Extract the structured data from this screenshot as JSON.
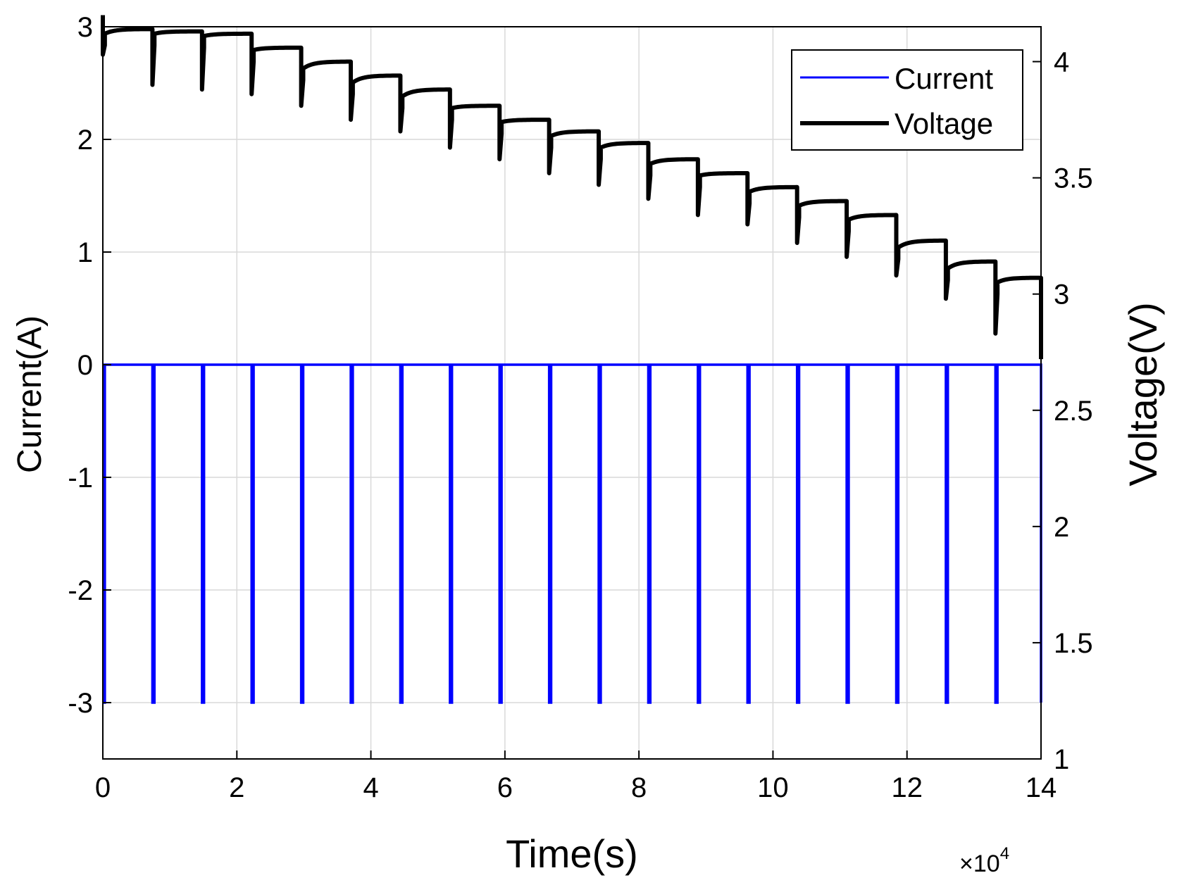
{
  "chart_data": {
    "type": "line",
    "xlabel": "Time(s)",
    "x_exponent_label": "×10",
    "x_exponent_power": "4",
    "x_multiplier": 10000,
    "x_unit_range": [
      0,
      14
    ],
    "x_ticks": [
      0,
      2,
      4,
      6,
      8,
      10,
      12,
      14
    ],
    "y_left": {
      "label": "Current(A)",
      "range": [
        -3.5,
        3
      ],
      "ticks": [
        3,
        2,
        1,
        0,
        -1,
        -2,
        -3
      ]
    },
    "y_right": {
      "label": "Voltage(V)",
      "range": [
        1,
        4.15
      ],
      "ticks": [
        4,
        3.5,
        3,
        2.5,
        2,
        1.5,
        1
      ]
    },
    "grid": true,
    "legend": {
      "placement": "top-right",
      "entries": [
        "Current",
        "Voltage"
      ]
    },
    "colors": {
      "current": "#0000ff",
      "voltage": "#000000",
      "grid": "#d9d9d9"
    },
    "pulse_width_s": 300,
    "series": [
      {
        "name": "Current",
        "axis": "left",
        "rest_current_A": 0,
        "discharge_current_A": -3,
        "pulse_start_times_s": [
          0,
          7400,
          14800,
          22200,
          29600,
          37000,
          44400,
          51800,
          59200,
          66600,
          74000,
          81400,
          88800,
          96200,
          103600,
          111000,
          118400,
          125800,
          133200,
          140000
        ]
      },
      {
        "name": "Voltage",
        "axis": "right",
        "segments": [
          {
            "t0": 300,
            "t1": 7400,
            "v_start": 4.12,
            "v_end": 4.14,
            "v_min": 3.9
          },
          {
            "t0": 7700,
            "t1": 14800,
            "v_start": 4.12,
            "v_end": 4.13,
            "v_min": 3.88
          },
          {
            "t0": 15100,
            "t1": 22200,
            "v_start": 4.11,
            "v_end": 4.12,
            "v_min": 3.86
          },
          {
            "t0": 22500,
            "t1": 29600,
            "v_start": 4.05,
            "v_end": 4.06,
            "v_min": 3.81
          },
          {
            "t0": 29900,
            "t1": 37000,
            "v_start": 3.97,
            "v_end": 4.0,
            "v_min": 3.75
          },
          {
            "t0": 37300,
            "t1": 44400,
            "v_start": 3.91,
            "v_end": 3.94,
            "v_min": 3.7
          },
          {
            "t0": 44700,
            "t1": 51800,
            "v_start": 3.85,
            "v_end": 3.88,
            "v_min": 3.63
          },
          {
            "t0": 52100,
            "t1": 59200,
            "v_start": 3.8,
            "v_end": 3.81,
            "v_min": 3.58
          },
          {
            "t0": 59500,
            "t1": 66600,
            "v_start": 3.74,
            "v_end": 3.75,
            "v_min": 3.52
          },
          {
            "t0": 66900,
            "t1": 74000,
            "v_start": 3.68,
            "v_end": 3.7,
            "v_min": 3.47
          },
          {
            "t0": 74300,
            "t1": 81400,
            "v_start": 3.63,
            "v_end": 3.65,
            "v_min": 3.41
          },
          {
            "t0": 81700,
            "t1": 88800,
            "v_start": 3.56,
            "v_end": 3.58,
            "v_min": 3.34
          },
          {
            "t0": 89100,
            "t1": 96200,
            "v_start": 3.51,
            "v_end": 3.52,
            "v_min": 3.3
          },
          {
            "t0": 96500,
            "t1": 103600,
            "v_start": 3.44,
            "v_end": 3.46,
            "v_min": 3.22
          },
          {
            "t0": 103900,
            "t1": 111000,
            "v_start": 3.38,
            "v_end": 3.4,
            "v_min": 3.16
          },
          {
            "t0": 111300,
            "t1": 118400,
            "v_start": 3.32,
            "v_end": 3.34,
            "v_min": 3.08
          },
          {
            "t0": 118700,
            "t1": 125800,
            "v_start": 3.2,
            "v_end": 3.23,
            "v_min": 2.98
          },
          {
            "t0": 126100,
            "t1": 133200,
            "v_start": 3.11,
            "v_end": 3.14,
            "v_min": 2.83
          },
          {
            "t0": 133500,
            "t1": 140000,
            "v_start": 3.05,
            "v_end": 3.07,
            "v_min": 2.72
          }
        ],
        "initial": {
          "t": 0,
          "v_rest": 4.2,
          "v_min": 4.03
        }
      }
    ]
  }
}
